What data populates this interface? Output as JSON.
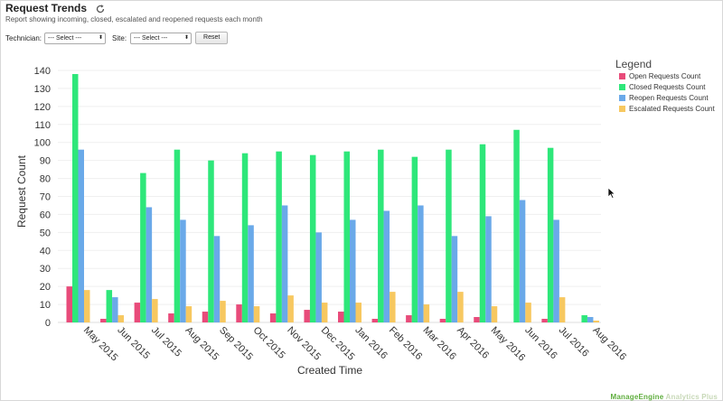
{
  "header": {
    "title": "Request Trends",
    "subtitle": "Report showing incoming, closed, escalated and reopened requests each month"
  },
  "filters": {
    "technician_label": "Technician:",
    "technician_value": "--- Select ---",
    "site_label": "Site:",
    "site_value": "--- Select ---",
    "reset_label": "Reset"
  },
  "watermark": {
    "part1": "ManageEngine",
    "part2": "Analytics Plus"
  },
  "colors": {
    "open": "#e84b7a",
    "closed": "#2ee77a",
    "reopen": "#6aa9e9",
    "escalated": "#f7c860"
  },
  "chart_data": {
    "type": "bar",
    "title": "",
    "xlabel": "Created Time",
    "ylabel": "Request Count",
    "ylim": [
      0,
      140
    ],
    "yticks": [
      "0",
      "10",
      "20",
      "30",
      "40",
      "50",
      "60",
      "70",
      "80",
      "90",
      "100",
      "110",
      "120",
      "130",
      "140"
    ],
    "legend_title": "Legend",
    "legend_position": "right",
    "categories": [
      "May 2015",
      "Jun 2015",
      "Jul 2015",
      "Aug 2015",
      "Sep 2015",
      "Oct 2015",
      "Nov 2015",
      "Dec 2015",
      "Jan 2016",
      "Feb 2016",
      "Mar 2016",
      "Apr 2016",
      "May 2016",
      "Jun 2016",
      "Jul 2016",
      "Aug 2016"
    ],
    "series": [
      {
        "name": "Open Requests Count",
        "color": "#e84b7a",
        "values": [
          20,
          2,
          11,
          5,
          6,
          10,
          5,
          7,
          6,
          2,
          4,
          2,
          3,
          0,
          2,
          0
        ]
      },
      {
        "name": "Closed Requests Count",
        "color": "#2ee77a",
        "values": [
          138,
          18,
          83,
          96,
          90,
          94,
          95,
          93,
          95,
          96,
          92,
          96,
          99,
          107,
          97,
          4
        ]
      },
      {
        "name": "Reopen Requests Count",
        "color": "#6aa9e9",
        "values": [
          96,
          14,
          64,
          57,
          48,
          54,
          65,
          50,
          57,
          62,
          65,
          48,
          59,
          68,
          57,
          3
        ]
      },
      {
        "name": "Escalated Requests Count",
        "color": "#f7c860",
        "values": [
          18,
          4,
          13,
          9,
          12,
          9,
          15,
          11,
          11,
          17,
          10,
          17,
          9,
          11,
          14,
          1
        ]
      }
    ]
  }
}
